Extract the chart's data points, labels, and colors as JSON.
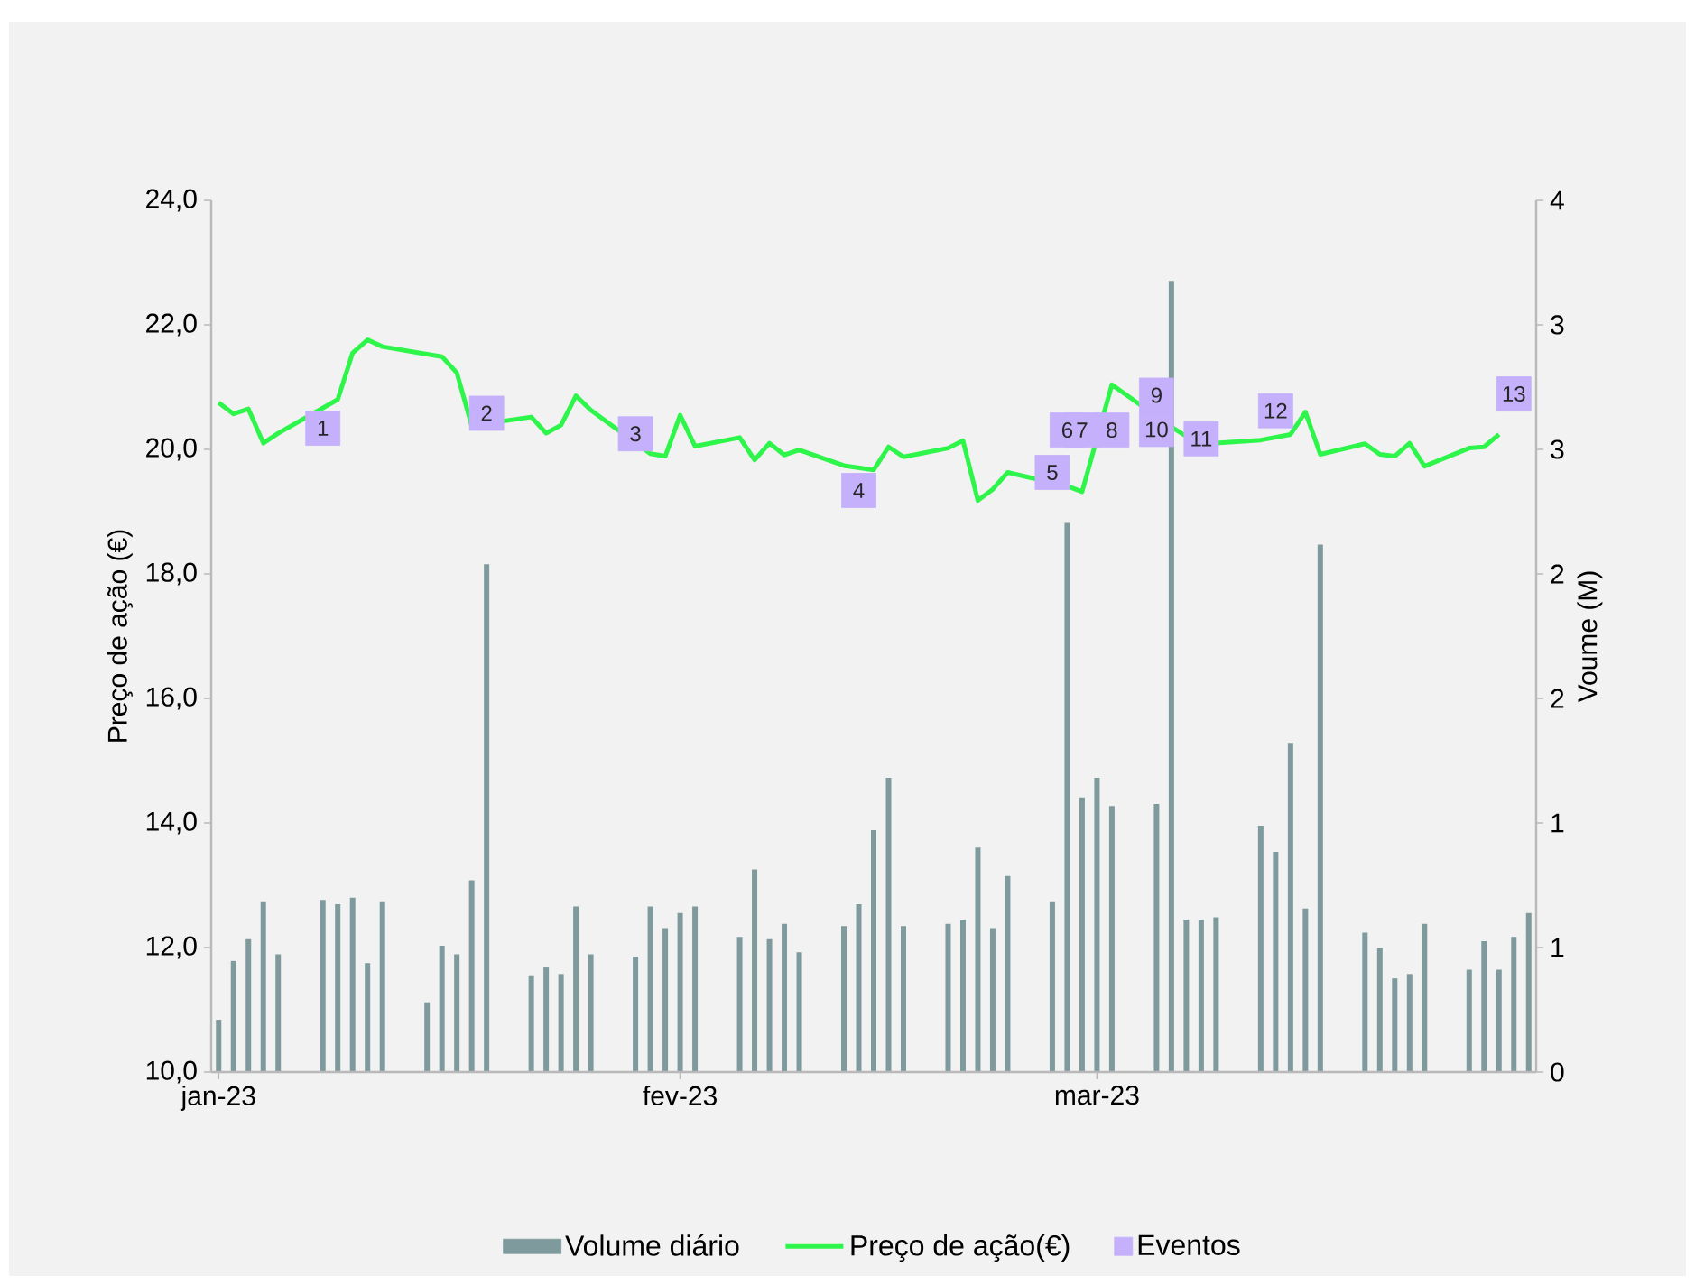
{
  "chart_data": {
    "type": "line",
    "ylabel": "Preço de ação (€)",
    "y2label": "Voume (M)",
    "xlim": [
      "2022-12-31T12:00",
      "2023-03-30T12:00"
    ],
    "xticks": [
      {
        "value": "2023-01-01",
        "label": "jan-23"
      },
      {
        "value": "2023-02-01",
        "label": "fev-23"
      },
      {
        "value": "2023-03-01",
        "label": "mar-23"
      }
    ],
    "ylim": [
      10,
      24
    ],
    "yticks": [
      {
        "value": 10,
        "label": "10,0"
      },
      {
        "value": 12,
        "label": "12,0"
      },
      {
        "value": 14,
        "label": "14,0"
      },
      {
        "value": 16,
        "label": "16,0"
      },
      {
        "value": 18,
        "label": "18,0"
      },
      {
        "value": 20,
        "label": "20,0"
      },
      {
        "value": 22,
        "label": "22,0"
      },
      {
        "value": 24,
        "label": "24,0"
      }
    ],
    "y2lim": [
      0,
      4
    ],
    "y2ticks": [
      0,
      {
        "value": 0.5714,
        "label": "1"
      },
      {
        "value": 1.1429,
        "label": "1"
      },
      {
        "value": 1.7143,
        "label": "2"
      },
      {
        "value": 2.2857,
        "label": "2"
      },
      {
        "value": 2.8571,
        "label": "3"
      },
      {
        "value": 3.4286,
        "label": "3"
      },
      4
    ],
    "legend": "bottom",
    "series": [
      {
        "name": "Volume diário",
        "type": "bar",
        "axis": "y2",
        "color": "#7f9a9c",
        "x": [
          "2023-01-01",
          "2023-01-02",
          "2023-01-03",
          "2023-01-04",
          "2023-01-05",
          "2023-01-08",
          "2023-01-09",
          "2023-01-10",
          "2023-01-11",
          "2023-01-12",
          "2023-01-15",
          "2023-01-16",
          "2023-01-17",
          "2023-01-18",
          "2023-01-19",
          "2023-01-22",
          "2023-01-23",
          "2023-01-24",
          "2023-01-25",
          "2023-01-26",
          "2023-01-29",
          "2023-01-30",
          "2023-01-31",
          "2023-02-01",
          "2023-02-02",
          "2023-02-05",
          "2023-02-06",
          "2023-02-07",
          "2023-02-08",
          "2023-02-09",
          "2023-02-12",
          "2023-02-13",
          "2023-02-14",
          "2023-02-15",
          "2023-02-16",
          "2023-02-19",
          "2023-02-20",
          "2023-02-21",
          "2023-02-22",
          "2023-02-23",
          "2023-02-26",
          "2023-02-27",
          "2023-02-28",
          "2023-03-01",
          "2023-03-02",
          "2023-03-05",
          "2023-03-06",
          "2023-03-07",
          "2023-03-08",
          "2023-03-09",
          "2023-03-12",
          "2023-03-13",
          "2023-03-14",
          "2023-03-15",
          "2023-03-16",
          "2023-03-19",
          "2023-03-20",
          "2023-03-21",
          "2023-03-22",
          "2023-03-23",
          "2023-03-26",
          "2023-03-27",
          "2023-03-28",
          "2023-03-29",
          "2023-03-30"
        ],
        "values": [
          0.24,
          0.51,
          0.61,
          0.78,
          0.54,
          0.79,
          0.77,
          0.8,
          0.5,
          0.78,
          0.32,
          0.58,
          0.54,
          0.88,
          2.33,
          0.44,
          0.48,
          0.45,
          0.76,
          0.54,
          0.53,
          0.76,
          0.66,
          0.73,
          0.76,
          0.62,
          0.93,
          0.61,
          0.68,
          0.55,
          0.67,
          0.77,
          1.11,
          1.35,
          0.67,
          0.68,
          0.7,
          1.03,
          0.66,
          0.9,
          0.78,
          2.52,
          1.26,
          1.35,
          1.22,
          1.23,
          3.63,
          0.7,
          0.7,
          0.71,
          1.13,
          1.01,
          1.51,
          0.75,
          2.42,
          0.64,
          0.57,
          0.43,
          0.45,
          0.68,
          0.47,
          0.6,
          0.47,
          0.62,
          0.73
        ]
      },
      {
        "name": "Preço de ação(€)",
        "color": "#2ef54a",
        "x": [
          "2023-01-01",
          "2023-01-02",
          "2023-01-03",
          "2023-01-04",
          "2023-01-05",
          "2023-01-08",
          "2023-01-09",
          "2023-01-10",
          "2023-01-11",
          "2023-01-12",
          "2023-01-15",
          "2023-01-16",
          "2023-01-17",
          "2023-01-18",
          "2023-01-19",
          "2023-01-22",
          "2023-01-23",
          "2023-01-24",
          "2023-01-25",
          "2023-01-26",
          "2023-01-29",
          "2023-01-30",
          "2023-01-31",
          "2023-02-01",
          "2023-02-02",
          "2023-02-05",
          "2023-02-06",
          "2023-02-07",
          "2023-02-08",
          "2023-02-09",
          "2023-02-12",
          "2023-02-13",
          "2023-02-14",
          "2023-02-15",
          "2023-02-16",
          "2023-02-19",
          "2023-02-20",
          "2023-02-21",
          "2023-02-22",
          "2023-02-23",
          "2023-02-26",
          "2023-02-27",
          "2023-02-28",
          "2023-03-01",
          "2023-03-02",
          "2023-03-05",
          "2023-03-06",
          "2023-03-07",
          "2023-03-08",
          "2023-03-09",
          "2023-03-12",
          "2023-03-13",
          "2023-03-14",
          "2023-03-15",
          "2023-03-16",
          "2023-03-19",
          "2023-03-20",
          "2023-03-21",
          "2023-03-22",
          "2023-03-23",
          "2023-03-26",
          "2023-03-27",
          "2023-03-28"
        ],
        "values": [
          20.75,
          20.57,
          20.65,
          20.1,
          20.26,
          null,
          20.8,
          21.55,
          21.76,
          21.65,
          21.53,
          21.49,
          21.23,
          20.38,
          null,
          20.52,
          20.26,
          20.39,
          20.86,
          20.63,
          null,
          19.93,
          19.89,
          20.55,
          20.05,
          20.19,
          19.83,
          20.1,
          19.91,
          19.99,
          19.74,
          null,
          19.67,
          20.04,
          19.88,
          20.02,
          20.14,
          19.18,
          19.36,
          19.63,
          null,
          19.41,
          19.32,
          null,
          21.04,
          null,
          20.36,
          20.21,
          null,
          20.1,
          20.15,
          null,
          20.24,
          20.6,
          19.92,
          20.09,
          19.92,
          19.89,
          20.1,
          19.73,
          20.02,
          20.04,
          20.24
        ]
      },
      {
        "name": "Eventos",
        "type": "scatter",
        "marker": "square",
        "color": "#c4b0fb",
        "x": [
          "2023-01-08",
          "2023-01-19",
          "2023-01-29",
          "2023-02-13",
          "2023-02-26",
          "2023-02-27",
          "2023-02-28",
          "2023-03-02",
          "2023-03-05",
          "2023-03-05",
          "2023-03-08",
          "2023-03-13",
          "2023-03-29"
        ],
        "values": [
          20.34,
          20.58,
          20.25,
          19.34,
          19.63,
          20.31,
          20.31,
          20.31,
          20.87,
          20.32,
          20.17,
          20.62,
          20.89
        ]
      }
    ],
    "annotations": [
      {
        "text": "1",
        "x": "2023-01-08",
        "y": 20.34
      },
      {
        "text": "2",
        "x": "2023-01-19",
        "y": 20.58
      },
      {
        "text": "3",
        "x": "2023-01-29",
        "y": 20.25
      },
      {
        "text": "4",
        "x": "2023-02-13",
        "y": 19.34
      },
      {
        "text": "5",
        "x": "2023-02-26",
        "y": 19.63
      },
      {
        "text": "6",
        "x": "2023-02-27",
        "y": 20.31
      },
      {
        "text": "7",
        "x": "2023-02-28",
        "y": 20.31
      },
      {
        "text": "8",
        "x": "2023-03-02",
        "y": 20.31
      },
      {
        "text": "9",
        "x": "2023-03-05",
        "y": 20.87
      },
      {
        "text": "10",
        "x": "2023-03-05",
        "y": 20.32
      },
      {
        "text": "11",
        "x": "2023-03-08",
        "y": 20.17
      },
      {
        "text": "12",
        "x": "2023-03-13",
        "y": 20.62
      },
      {
        "text": "13",
        "x": "2023-03-29",
        "y": 20.89
      }
    ]
  }
}
